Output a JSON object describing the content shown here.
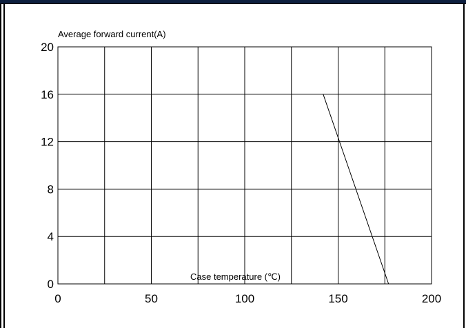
{
  "chart_data": {
    "type": "line",
    "xlabel": "Case temperature (℃)",
    "ylabel": "Average forward current(A)",
    "xlim": [
      0,
      200
    ],
    "ylim": [
      0,
      20
    ],
    "x_ticks": [
      0,
      50,
      100,
      150,
      200
    ],
    "y_ticks": [
      0,
      4,
      8,
      12,
      16,
      20
    ],
    "x_grid_step": 25,
    "y_grid_step": 4,
    "grid": true,
    "series": [
      {
        "x": [
          142,
          177
        ],
        "y": [
          16,
          0
        ]
      }
    ]
  }
}
